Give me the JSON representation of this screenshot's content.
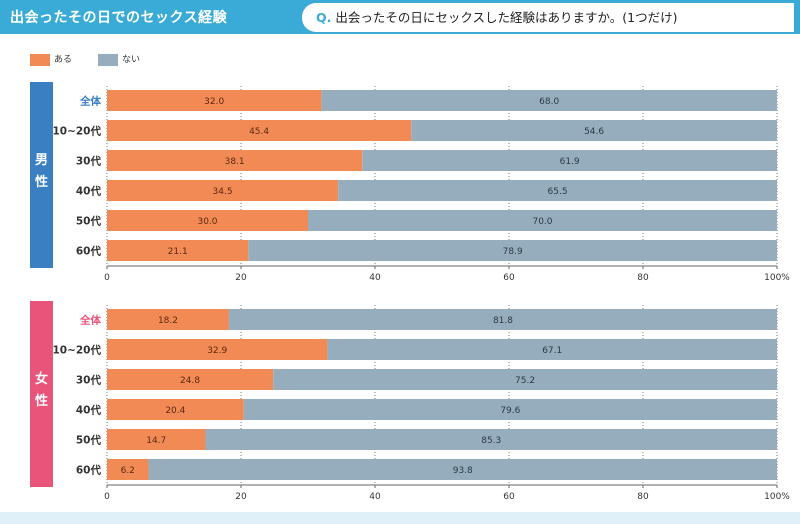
{
  "header": {
    "title": "出会ったその日でのセックス経験",
    "question_prefix": "Q.",
    "question": "出会ったその日にセックスした経験はありますか。(1つだけ)"
  },
  "legend": {
    "yes_label": "ある",
    "no_label": "ない"
  },
  "colors": {
    "yes": "#f28a55",
    "no": "#96adbd",
    "male": "#3a7fc2",
    "female": "#e9557a",
    "header": "#3aaad6"
  },
  "chart_data": [
    {
      "type": "bar",
      "orientation": "horizontal",
      "stacked": true,
      "panel": "男性",
      "title": "男性",
      "categories": [
        "全体",
        "10~20代",
        "30代",
        "40代",
        "50代",
        "60代"
      ],
      "series": [
        {
          "name": "ある",
          "values": [
            32.0,
            45.4,
            38.1,
            34.5,
            30.0,
            21.1
          ]
        },
        {
          "name": "ない",
          "values": [
            68.0,
            54.6,
            61.9,
            65.5,
            70.0,
            78.9
          ]
        }
      ],
      "xlim": [
        0,
        100
      ],
      "xticks": [
        "0",
        "20",
        "40",
        "60",
        "80",
        "100%"
      ],
      "legend": "top-left"
    },
    {
      "type": "bar",
      "orientation": "horizontal",
      "stacked": true,
      "panel": "女性",
      "title": "女性",
      "categories": [
        "全体",
        "10~20代",
        "30代",
        "40代",
        "50代",
        "60代"
      ],
      "series": [
        {
          "name": "ある",
          "values": [
            18.2,
            32.9,
            24.8,
            20.4,
            14.7,
            6.2
          ]
        },
        {
          "name": "ない",
          "values": [
            81.8,
            67.1,
            75.2,
            79.6,
            85.3,
            93.8
          ]
        }
      ],
      "xlim": [
        0,
        100
      ],
      "xticks": [
        "0",
        "20",
        "40",
        "60",
        "80",
        "100%"
      ],
      "legend": "top-left"
    }
  ]
}
